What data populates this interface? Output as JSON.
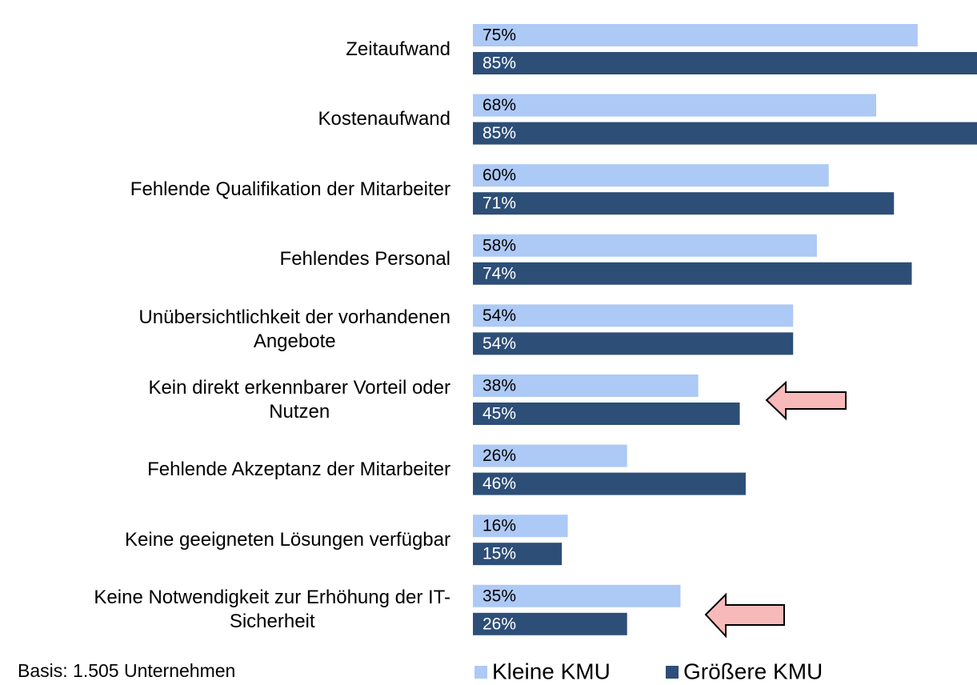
{
  "chart_data": {
    "type": "bar",
    "orientation": "horizontal",
    "categories": [
      "Zeitaufwand",
      "Kostenaufwand",
      "Fehlende Qualifikation der Mitarbeiter",
      "Fehlendes Personal",
      "Unübersichtlichkeit der vorhandenen\nAngebote",
      "Kein direkt erkennbarer Vorteil oder\nNutzen",
      "Fehlende Akzeptanz der Mitarbeiter",
      "Keine geeigneten Lösungen verfügbar",
      "Keine Notwendigkeit zur Erhöhung der IT-\nSicherheit"
    ],
    "series": [
      {
        "name": "Kleine KMU",
        "color": "#adc9f5",
        "values": [
          75,
          68,
          60,
          58,
          54,
          38,
          26,
          16,
          35
        ],
        "value_labels": [
          "75%",
          "68%",
          "60%",
          "58%",
          "54%",
          "38%",
          "26%",
          "16%",
          "35%"
        ]
      },
      {
        "name": "Größere KMU",
        "color": "#2d4e77",
        "values": [
          85,
          85,
          71,
          74,
          54,
          45,
          46,
          15,
          26
        ],
        "value_labels": [
          "85%",
          "85%",
          "71%",
          "74%",
          "54%",
          "45%",
          "46%",
          "15%",
          "26%"
        ]
      }
    ],
    "footnote": "Basis: 1.505 Unternehmen"
  }
}
